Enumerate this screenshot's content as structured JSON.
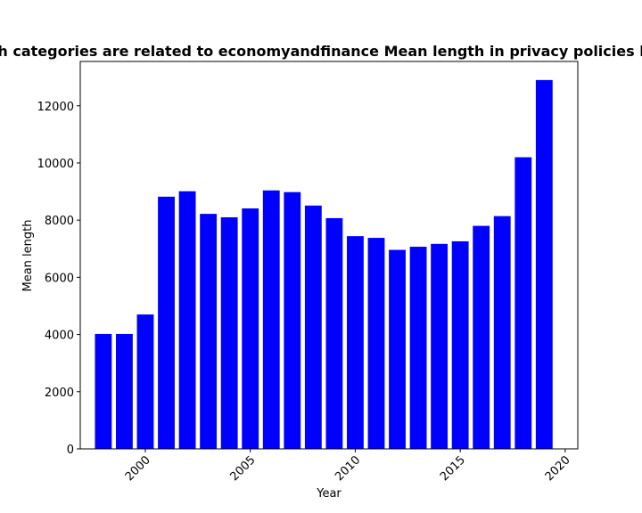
{
  "chart_data": {
    "type": "bar",
    "title": "Which categories are related to economyandfinance Mean length in privacy policies by year",
    "xlabel": "Year",
    "ylabel": "Mean length",
    "bar_color": "#0000ff",
    "x": [
      1998,
      1999,
      2000,
      2001,
      2002,
      2003,
      2004,
      2005,
      2006,
      2007,
      2008,
      2009,
      2010,
      2011,
      2012,
      2013,
      2014,
      2015,
      2016,
      2017,
      2018,
      2019
    ],
    "values": [
      4020,
      4020,
      4700,
      8820,
      9010,
      8220,
      8100,
      8410,
      9040,
      8980,
      8510,
      8070,
      7440,
      7380,
      6960,
      7070,
      7170,
      7260,
      7800,
      8140,
      10200,
      12900
    ],
    "xlim": [
      1996.9,
      2020.6
    ],
    "ylim": [
      0,
      13550
    ],
    "xticks": [
      2000,
      2005,
      2010,
      2015,
      2020
    ],
    "xtick_labels": [
      "2000",
      "2005",
      "2010",
      "2015",
      "2020"
    ],
    "yticks": [
      0,
      2000,
      4000,
      6000,
      8000,
      10000,
      12000
    ],
    "ytick_labels": [
      "0",
      "2000",
      "4000",
      "6000",
      "8000",
      "10000",
      "12000"
    ],
    "xtick_rotation_deg": 45,
    "grid": false,
    "legend": "none"
  }
}
